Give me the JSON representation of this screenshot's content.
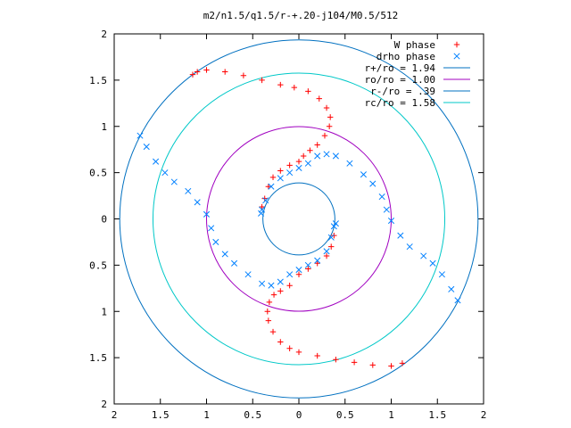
{
  "chart_data": {
    "type": "scatter",
    "title": "m2/n1.5/q1.5/r-+.20-j104/M0.5/512",
    "xlabel": "",
    "ylabel": "",
    "xlim": [
      -2,
      2
    ],
    "ylim": [
      -2,
      2
    ],
    "aspect": "equal",
    "grid": false,
    "legend_position": "top-right",
    "x_ticks": [
      {
        "value": -2,
        "label": "2"
      },
      {
        "value": -1.5,
        "label": "1.5"
      },
      {
        "value": -1,
        "label": "1"
      },
      {
        "value": -0.5,
        "label": "0.5"
      },
      {
        "value": 0,
        "label": "0"
      },
      {
        "value": 0.5,
        "label": "0.5"
      },
      {
        "value": 1,
        "label": "1"
      },
      {
        "value": 1.5,
        "label": "1.5"
      },
      {
        "value": 2,
        "label": "2"
      }
    ],
    "y_ticks": [
      {
        "value": 2,
        "label": "2"
      },
      {
        "value": 1.5,
        "label": "1.5"
      },
      {
        "value": 1,
        "label": "1"
      },
      {
        "value": 0.5,
        "label": "0.5"
      },
      {
        "value": 0,
        "label": "0"
      },
      {
        "value": -0.5,
        "label": "0.5"
      },
      {
        "value": -1,
        "label": "1"
      },
      {
        "value": -1.5,
        "label": "1.5"
      },
      {
        "value": -2,
        "label": "2"
      }
    ],
    "point_series": [
      {
        "name": "W phase",
        "marker": "plus",
        "color": "#ff0000",
        "points": [
          [
            -1.15,
            1.56
          ],
          [
            -1.1,
            1.59
          ],
          [
            -1.0,
            1.61
          ],
          [
            -0.8,
            1.59
          ],
          [
            -0.6,
            1.55
          ],
          [
            -0.4,
            1.5
          ],
          [
            -0.2,
            1.45
          ],
          [
            -0.05,
            1.42
          ],
          [
            0.1,
            1.38
          ],
          [
            0.22,
            1.3
          ],
          [
            0.3,
            1.2
          ],
          [
            0.34,
            1.1
          ],
          [
            0.33,
            1.0
          ],
          [
            0.28,
            0.9
          ],
          [
            0.2,
            0.8
          ],
          [
            0.12,
            0.74
          ],
          [
            0.05,
            0.68
          ],
          [
            0.0,
            0.62
          ],
          [
            -0.1,
            0.58
          ],
          [
            -0.2,
            0.52
          ],
          [
            -0.28,
            0.45
          ],
          [
            -0.33,
            0.35
          ],
          [
            -0.37,
            0.22
          ],
          [
            -0.4,
            0.13
          ],
          [
            1.12,
            -1.56
          ],
          [
            1.0,
            -1.59
          ],
          [
            0.8,
            -1.58
          ],
          [
            0.6,
            -1.55
          ],
          [
            0.4,
            -1.52
          ],
          [
            0.2,
            -1.48
          ],
          [
            0.0,
            -1.44
          ],
          [
            -0.1,
            -1.4
          ],
          [
            -0.2,
            -1.33
          ],
          [
            -0.28,
            -1.22
          ],
          [
            -0.33,
            -1.1
          ],
          [
            -0.34,
            -1.0
          ],
          [
            -0.32,
            -0.9
          ],
          [
            -0.27,
            -0.82
          ],
          [
            -0.2,
            -0.78
          ],
          [
            -0.1,
            -0.72
          ],
          [
            0.0,
            -0.6
          ],
          [
            0.1,
            -0.54
          ],
          [
            0.2,
            -0.48
          ],
          [
            0.3,
            -0.4
          ],
          [
            0.35,
            -0.3
          ],
          [
            0.38,
            -0.18
          ]
        ]
      },
      {
        "name": "drho phase",
        "marker": "cross",
        "color": "#0080ff",
        "points": [
          [
            -1.72,
            0.9
          ],
          [
            -1.65,
            0.78
          ],
          [
            -1.55,
            0.62
          ],
          [
            -1.45,
            0.5
          ],
          [
            -1.35,
            0.4
          ],
          [
            -1.2,
            0.3
          ],
          [
            -1.1,
            0.18
          ],
          [
            -1.0,
            0.05
          ],
          [
            -0.95,
            -0.1
          ],
          [
            -0.9,
            -0.25
          ],
          [
            -0.8,
            -0.38
          ],
          [
            -0.7,
            -0.48
          ],
          [
            -0.55,
            -0.6
          ],
          [
            -0.4,
            -0.7
          ],
          [
            -0.3,
            -0.72
          ],
          [
            -0.2,
            -0.68
          ],
          [
            -0.1,
            -0.6
          ],
          [
            0.0,
            -0.55
          ],
          [
            0.1,
            -0.5
          ],
          [
            0.2,
            -0.45
          ],
          [
            0.3,
            -0.35
          ],
          [
            0.35,
            -0.2
          ],
          [
            0.38,
            -0.08
          ],
          [
            0.4,
            -0.05
          ],
          [
            1.72,
            -0.88
          ],
          [
            1.65,
            -0.76
          ],
          [
            1.55,
            -0.6
          ],
          [
            1.45,
            -0.48
          ],
          [
            1.35,
            -0.4
          ],
          [
            1.2,
            -0.3
          ],
          [
            1.1,
            -0.18
          ],
          [
            1.0,
            -0.02
          ],
          [
            0.95,
            0.1
          ],
          [
            0.9,
            0.24
          ],
          [
            0.8,
            0.38
          ],
          [
            0.7,
            0.48
          ],
          [
            0.55,
            0.6
          ],
          [
            0.4,
            0.68
          ],
          [
            0.3,
            0.7
          ],
          [
            0.2,
            0.68
          ],
          [
            0.1,
            0.6
          ],
          [
            0.0,
            0.55
          ],
          [
            -0.1,
            0.5
          ],
          [
            -0.2,
            0.44
          ],
          [
            -0.3,
            0.35
          ],
          [
            -0.36,
            0.2
          ],
          [
            -0.4,
            0.1
          ],
          [
            -0.41,
            0.06
          ]
        ]
      }
    ],
    "curve_series": [
      {
        "name": "r+/ro = 1.94",
        "radius": 1.94,
        "color": "#0070c0"
      },
      {
        "name": "ro/ro = 1.00",
        "radius": 1.0,
        "color": "#a000c0"
      },
      {
        "name": "r-/ro = .39",
        "radius": 0.39,
        "color": "#0070c0"
      },
      {
        "name": "rc/ro = 1.58",
        "radius": 1.58,
        "color": "#00c8c8"
      }
    ]
  }
}
